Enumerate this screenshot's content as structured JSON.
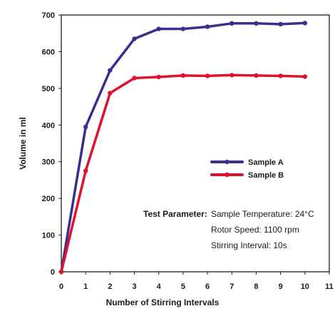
{
  "chart_data": {
    "type": "line",
    "title": "",
    "xlabel": "Number of Stirring Intervals",
    "ylabel": "Volume in ml",
    "x": [
      0,
      1,
      2,
      3,
      4,
      5,
      6,
      7,
      8,
      9,
      10
    ],
    "xlim": [
      0,
      11
    ],
    "ylim": [
      0,
      700
    ],
    "xticks": [
      0,
      1,
      2,
      3,
      4,
      5,
      6,
      7,
      8,
      9,
      10,
      11
    ],
    "yticks": [
      0,
      100,
      200,
      300,
      400,
      500,
      600,
      700
    ],
    "grid": false,
    "legend_position": "center-right",
    "series": [
      {
        "name": "Sample A",
        "color": "#3a2f8f",
        "values": [
          0,
          395,
          549,
          635,
          662,
          662,
          668,
          677,
          677,
          675,
          678
        ]
      },
      {
        "name": "Sample B",
        "color": "#e0102f",
        "values": [
          0,
          275,
          487,
          528,
          531,
          535,
          534,
          536,
          535,
          534,
          532
        ]
      }
    ],
    "annotation": {
      "label": "Test Parameter:",
      "lines": [
        "Sample Temperature: 24°C",
        "Rotor Speed: 1100 rpm",
        "Stirring Interval: 10s"
      ]
    }
  }
}
